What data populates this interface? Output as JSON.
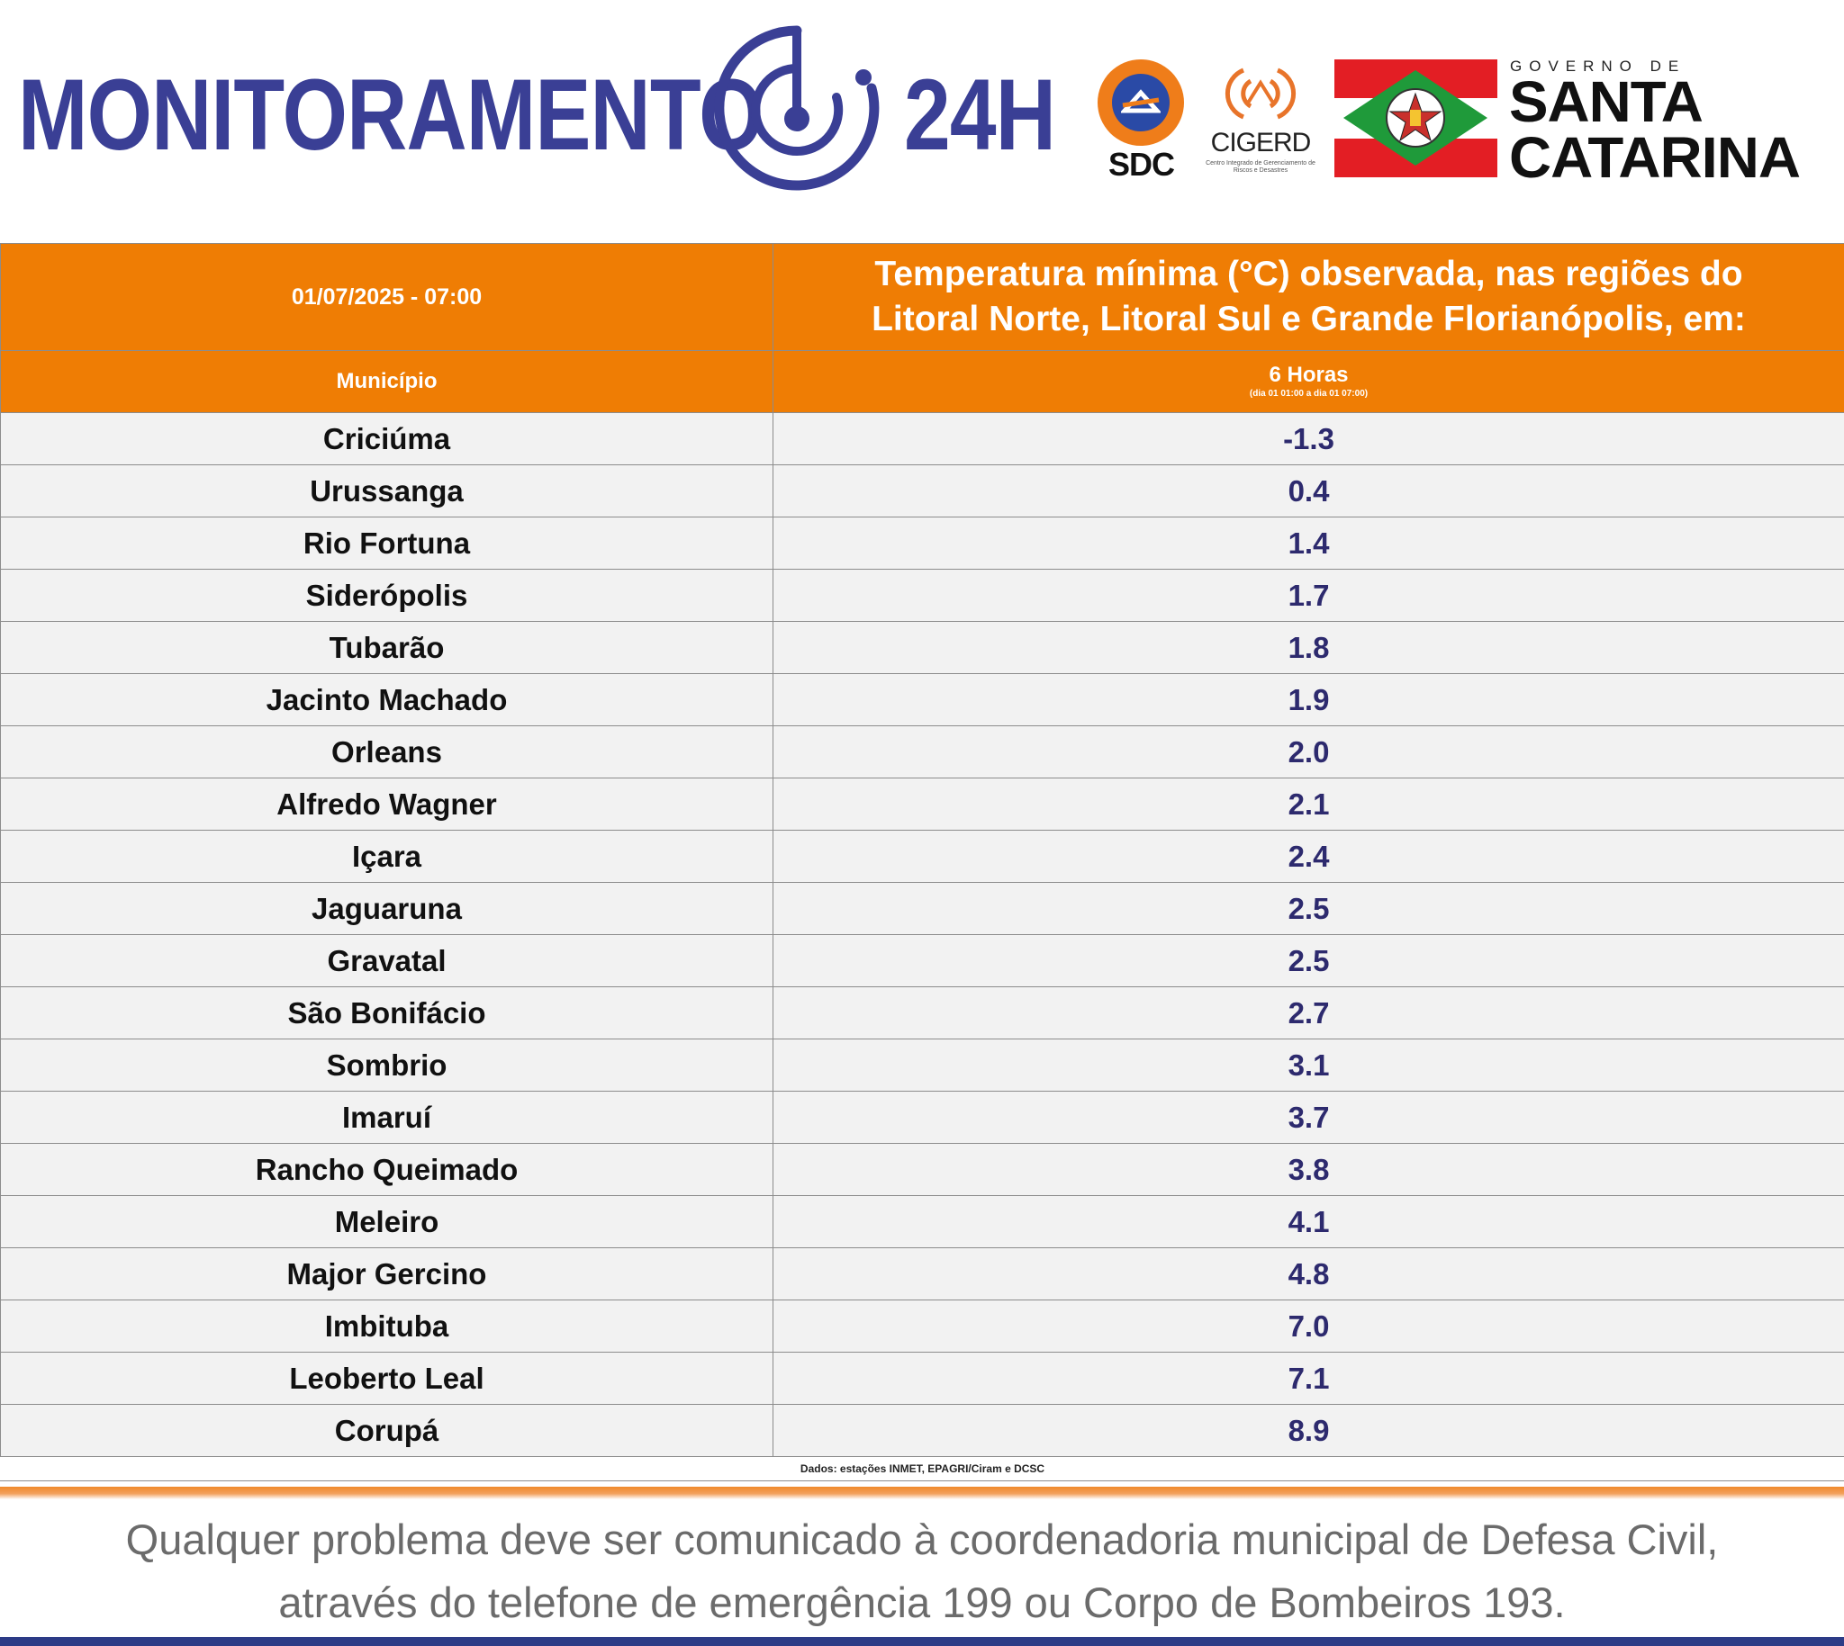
{
  "header": {
    "brand_left": "MONITORAMENTO",
    "brand_right": "24H",
    "sdc_label": "SDC",
    "cigerd_label": "CIGERD",
    "cigerd_sub": "Centro Integrado de Gerenciamento de Riscos e Desastres",
    "gov_label": "GOVERNO DE",
    "state_line1": "SANTA",
    "state_line2": "CATARINA"
  },
  "table": {
    "date": "01/07/2025 - 07:00",
    "title_line1": "Temperatura mínima (°C) observada, nas regiões do",
    "title_line2": "Litoral Norte, Litoral Sul e Grande Florianópolis, em:",
    "col_municipio": "Município",
    "col_period": "6 Horas",
    "col_period_sub": "(dia 01 01:00 a dia 01 07:00)",
    "rows": [
      {
        "municipio": "Criciúma",
        "valor": "-1.3"
      },
      {
        "municipio": "Urussanga",
        "valor": "0.4"
      },
      {
        "municipio": "Rio Fortuna",
        "valor": "1.4"
      },
      {
        "municipio": "Siderópolis",
        "valor": "1.7"
      },
      {
        "municipio": "Tubarão",
        "valor": "1.8"
      },
      {
        "municipio": "Jacinto Machado",
        "valor": "1.9"
      },
      {
        "municipio": "Orleans",
        "valor": "2.0"
      },
      {
        "municipio": "Alfredo Wagner",
        "valor": "2.1"
      },
      {
        "municipio": "Içara",
        "valor": "2.4"
      },
      {
        "municipio": "Jaguaruna",
        "valor": "2.5"
      },
      {
        "municipio": "Gravatal",
        "valor": "2.5"
      },
      {
        "municipio": "São Bonifácio",
        "valor": "2.7"
      },
      {
        "municipio": "Sombrio",
        "valor": "3.1"
      },
      {
        "municipio": "Imaruí",
        "valor": "3.7"
      },
      {
        "municipio": "Rancho Queimado",
        "valor": "3.8"
      },
      {
        "municipio": "Meleiro",
        "valor": "4.1"
      },
      {
        "municipio": "Major Gercino",
        "valor": "4.8"
      },
      {
        "municipio": "Imbituba",
        "valor": "7.0"
      },
      {
        "municipio": "Leoberto Leal",
        "valor": "7.1"
      },
      {
        "municipio": "Corupá",
        "valor": "8.9"
      }
    ],
    "source_note": "Dados: estações INMET, EPAGRI/Ciram e DCSC"
  },
  "footer": {
    "line1": "Qualquer problema deve ser comunicado à coordenadoria municipal de Defesa Civil,",
    "line2": "através do telefone de emergência 199 ou Corpo de Bombeiros 193."
  },
  "colors": {
    "brand_blue": "#3a3f95",
    "header_orange": "#ef7d04",
    "value_blue": "#2d2a6e",
    "row_bg": "#f2f2f2"
  }
}
